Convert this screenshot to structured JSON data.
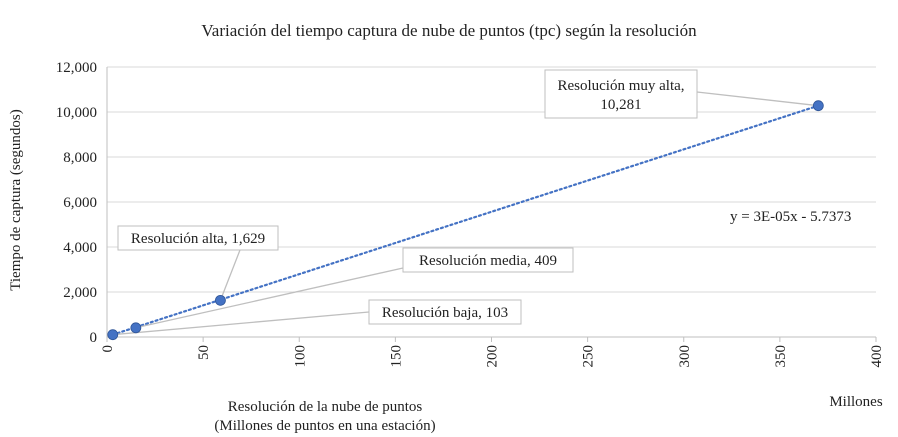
{
  "chart_data": {
    "type": "scatter",
    "title": "Variación del tiempo captura de nube de puntos  (tpc) según  la resolución",
    "xlabel_line1": "Resolución de la nube de puntos",
    "xlabel_line2": "(Millones de puntos en una  estación)",
    "x_unit_label": "Millones",
    "ylabel": "Tiempo de captura (segundos)",
    "xlim": [
      0,
      400
    ],
    "ylim": [
      0,
      12000
    ],
    "x_ticks": [
      "0",
      "50",
      "100",
      "150",
      "200",
      "250",
      "300",
      "350",
      "400"
    ],
    "y_ticks": [
      "0",
      "2,000",
      "4,000",
      "6,000",
      "8,000",
      "10,000",
      "12,000"
    ],
    "grid": "horizontal",
    "marker_color": "#4472c4",
    "trendline_color": "#4472c4",
    "points": [
      {
        "x": 3,
        "y": 103,
        "label": "Resolución baja, 103"
      },
      {
        "x": 15,
        "y": 409,
        "label": "Resolución media, 409"
      },
      {
        "x": 59,
        "y": 1629,
        "label": "Resolución alta, 1,629"
      },
      {
        "x": 370,
        "y": 10281,
        "label_line1": "Resolución muy alta,",
        "label_line2": "10,281"
      }
    ],
    "trendline": {
      "x_start": 3,
      "y_start": 103,
      "x_end": 370,
      "y_end": 10281
    },
    "equation": "y = 3E-05x - 5.7373"
  }
}
